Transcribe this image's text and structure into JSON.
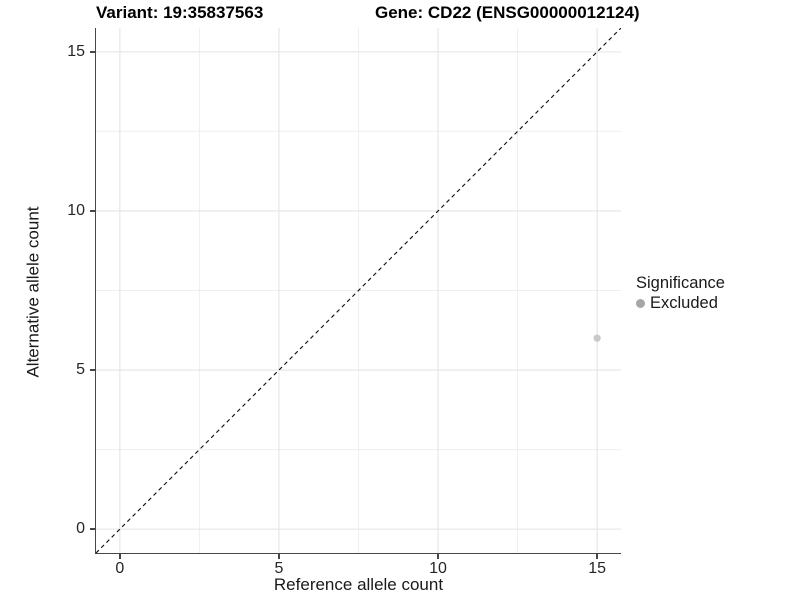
{
  "titles": {
    "variant": "Variant: 19:35837563",
    "gene": "Gene: CD22 (ENSG00000012124)"
  },
  "axes": {
    "x": {
      "label": "Reference allele count",
      "tick_labels": [
        "0",
        "5",
        "10",
        "15"
      ]
    },
    "y": {
      "label": "Alternative allele count",
      "tick_labels": [
        "0",
        "5",
        "10",
        "15"
      ]
    }
  },
  "legend": {
    "title": "Significance",
    "items": [
      {
        "label": "Excluded",
        "swatch_color": "#a6a6a6"
      }
    ]
  },
  "chart_data": {
    "type": "scatter",
    "title_left": "Variant: 19:35837563",
    "title_right": "Gene: CD22 (ENSG00000012124)",
    "xlabel": "Reference allele count",
    "ylabel": "Alternative allele count",
    "xlim": [
      -0.75,
      15.75
    ],
    "ylim": [
      -0.75,
      15.75
    ],
    "x_ticks": [
      0,
      5,
      10,
      15
    ],
    "y_ticks": [
      0,
      5,
      10,
      15
    ],
    "minor_grid_at": [
      2.5,
      7.5,
      12.5
    ],
    "grid": "major+minor",
    "legend_position": "right-middle",
    "series": [
      {
        "name": "Excluded",
        "color": "#c9c9c9",
        "marker": "circle",
        "marker_radius": 3.6,
        "points": [
          [
            15,
            6
          ]
        ]
      }
    ],
    "reference_line": {
      "kind": "identity y=x",
      "style": "dashed",
      "color": "#141414"
    }
  },
  "style_colors": {
    "grid_major": "#e4e4e4",
    "grid_minor": "#efefef",
    "axis_line": "#474747",
    "tick_label": "#262626",
    "legend_dot": "#a6a6a6"
  }
}
